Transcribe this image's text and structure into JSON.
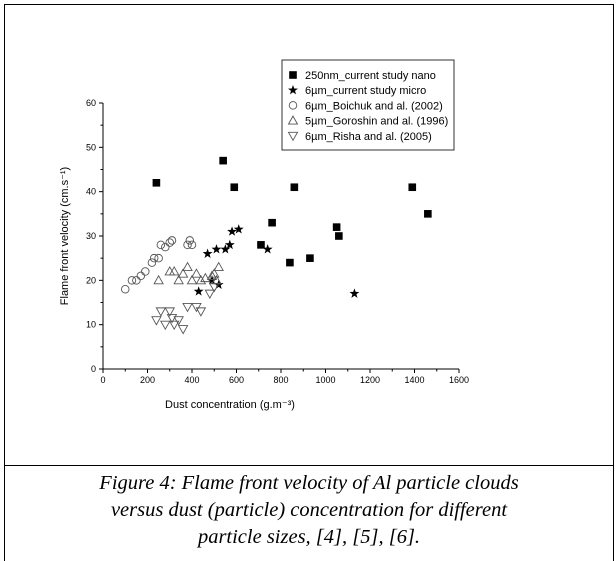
{
  "chart_data": {
    "type": "scatter",
    "title": "",
    "xlabel": "Dust concentration (g.m⁻³)",
    "ylabel": "Flame front velocity (cm.s⁻¹)",
    "xlim": [
      0,
      1600
    ],
    "ylim": [
      0,
      60
    ],
    "xticks": [
      "0",
      "200",
      "400",
      "600",
      "800",
      "1000",
      "1200",
      "1400",
      "1600"
    ],
    "yticks": [
      "0",
      "10",
      "20",
      "30",
      "40",
      "50",
      "60"
    ],
    "grid": false,
    "legend_position": "top-right",
    "series": [
      {
        "name": "250nm_current study nano",
        "marker": "filled-square",
        "points": [
          [
            240,
            42
          ],
          [
            540,
            47
          ],
          [
            590,
            41
          ],
          [
            710,
            28
          ],
          [
            760,
            33
          ],
          [
            840,
            24
          ],
          [
            860,
            41
          ],
          [
            930,
            25
          ],
          [
            1050,
            32
          ],
          [
            1060,
            30
          ],
          [
            1390,
            41
          ],
          [
            1460,
            35
          ]
        ]
      },
      {
        "name": "6µm_current study micro",
        "marker": "filled-star",
        "points": [
          [
            430,
            17.5
          ],
          [
            470,
            26
          ],
          [
            490,
            20
          ],
          [
            510,
            27
          ],
          [
            520,
            19
          ],
          [
            550,
            27
          ],
          [
            570,
            28
          ],
          [
            580,
            31
          ],
          [
            610,
            31.5
          ],
          [
            740,
            27
          ],
          [
            1130,
            17
          ]
        ]
      },
      {
        "name": "6µm_Boichuk and al. (2002)",
        "marker": "open-circle",
        "points": [
          [
            100,
            18
          ],
          [
            130,
            20
          ],
          [
            150,
            20
          ],
          [
            170,
            21
          ],
          [
            190,
            22
          ],
          [
            220,
            24
          ],
          [
            230,
            25
          ],
          [
            250,
            25
          ],
          [
            260,
            28
          ],
          [
            280,
            27.5
          ],
          [
            300,
            28.5
          ],
          [
            310,
            29
          ],
          [
            380,
            28
          ],
          [
            390,
            29
          ],
          [
            400,
            28
          ]
        ]
      },
      {
        "name": "5µm_Goroshin and al. (1996)",
        "marker": "open-triangle-up",
        "points": [
          [
            250,
            20
          ],
          [
            300,
            22
          ],
          [
            320,
            22
          ],
          [
            340,
            20
          ],
          [
            360,
            21.5
          ],
          [
            380,
            23
          ],
          [
            400,
            20
          ],
          [
            420,
            21.5
          ],
          [
            440,
            20
          ],
          [
            460,
            20.5
          ],
          [
            490,
            21
          ],
          [
            500,
            21.5
          ],
          [
            510,
            20
          ],
          [
            520,
            23
          ]
        ]
      },
      {
        "name": "6µm_Risha and al. (2005)",
        "marker": "open-triangle-down",
        "points": [
          [
            240,
            11
          ],
          [
            260,
            13
          ],
          [
            280,
            10
          ],
          [
            300,
            13
          ],
          [
            310,
            11.5
          ],
          [
            320,
            10
          ],
          [
            340,
            11
          ],
          [
            360,
            9
          ],
          [
            380,
            14
          ],
          [
            420,
            14
          ],
          [
            440,
            13
          ],
          [
            480,
            17
          ],
          [
            500,
            18.5
          ]
        ]
      }
    ]
  },
  "caption": {
    "line1": "Figure 4: Flame front velocity of Al particle clouds",
    "line2": "versus dust (particle) concentration for different",
    "line3": "particle sizes, [4], [5], [6]."
  }
}
